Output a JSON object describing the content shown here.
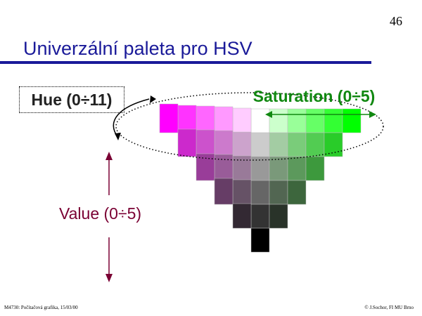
{
  "page_number": "46",
  "title": "Univerzální paleta pro HSV",
  "labels": {
    "hue": "Hue (0÷11)",
    "saturation": "Saturation (0÷5)",
    "value": "Value (0÷5)"
  },
  "footer": {
    "left": "M4730: Počítačová grafika, 15/03/00",
    "right": "© J.Sochor, FI MU Brno"
  },
  "colors": {
    "title": "#1a1a99",
    "saturation_label": "#118811",
    "value_label": "#7a0033",
    "magenta_hue": "#ff00ff",
    "green_hue": "#00ff00"
  },
  "palette": {
    "saturation_levels": 6,
    "value_levels": 6,
    "hues_shown": [
      "magenta",
      "green"
    ]
  }
}
